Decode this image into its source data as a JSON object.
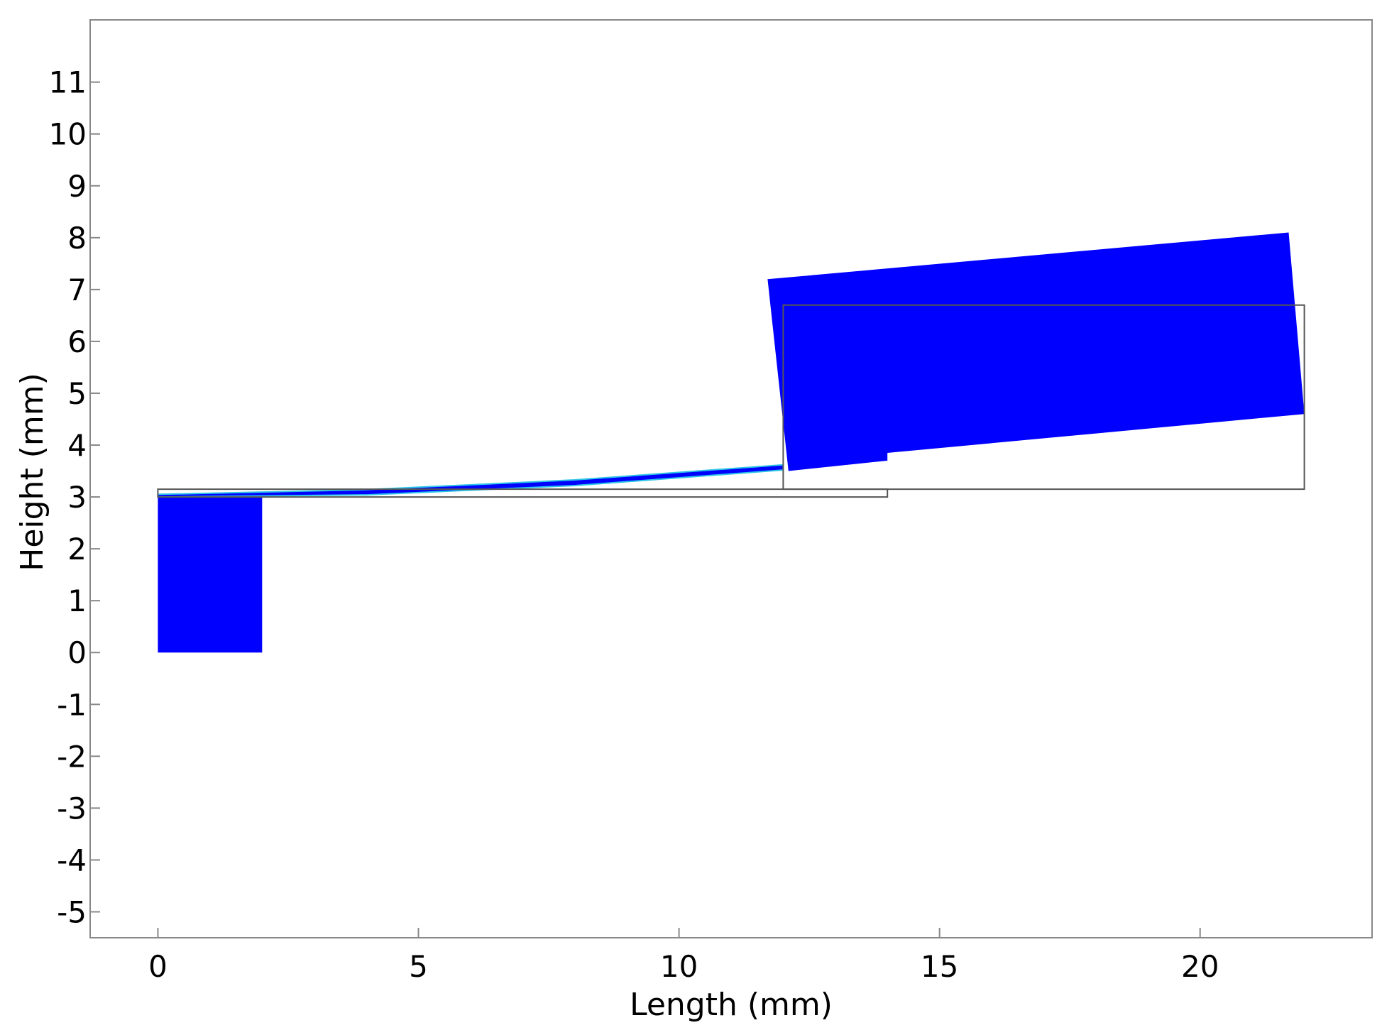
{
  "chart_data": {
    "type": "other",
    "xlabel": "Length (mm)",
    "ylabel": "Height  (mm)",
    "xlim": [
      -1.3,
      23.3
    ],
    "ylim": [
      -5.5,
      12.2
    ],
    "xticks": [
      0,
      5,
      10,
      15,
      20
    ],
    "yticks": [
      -5,
      -4,
      -3,
      -2,
      -1,
      0,
      1,
      2,
      3,
      4,
      5,
      6,
      7,
      8,
      9,
      10,
      11
    ],
    "grid": false,
    "legend": "none",
    "colors": {
      "deformed_fill": "#0000ff",
      "beam_highlight": "#2ec4e6",
      "outline": "#555555",
      "axis": "#888888"
    },
    "shapes": [
      {
        "name": "fixed-support-block",
        "kind": "deformed",
        "points": [
          [
            0,
            0
          ],
          [
            2,
            0
          ],
          [
            2,
            3.0
          ],
          [
            0,
            3.0
          ]
        ]
      },
      {
        "name": "cantilever-beam-deformed",
        "kind": "deformed-beam",
        "points": [
          [
            0,
            3.05
          ],
          [
            4,
            3.14
          ],
          [
            8,
            3.33
          ],
          [
            12,
            3.62
          ],
          [
            12,
            3.52
          ],
          [
            8,
            3.22
          ],
          [
            4,
            3.04
          ],
          [
            0,
            3.0
          ]
        ]
      },
      {
        "name": "proof-mass-deformed",
        "kind": "deformed",
        "points": [
          [
            11.7,
            7.2
          ],
          [
            21.7,
            8.1
          ],
          [
            22.0,
            4.6
          ],
          [
            14.0,
            3.85
          ],
          [
            14.0,
            3.7
          ],
          [
            12.1,
            3.5
          ]
        ]
      },
      {
        "name": "undeformed-beam-outline",
        "kind": "outline",
        "points": [
          [
            0,
            3.0
          ],
          [
            14,
            3.0
          ],
          [
            14,
            3.15
          ],
          [
            0,
            3.15
          ]
        ]
      },
      {
        "name": "undeformed-mass-outline",
        "kind": "outline",
        "points": [
          [
            12,
            3.15
          ],
          [
            22,
            3.15
          ],
          [
            22,
            6.7
          ],
          [
            12,
            6.7
          ]
        ]
      }
    ]
  }
}
